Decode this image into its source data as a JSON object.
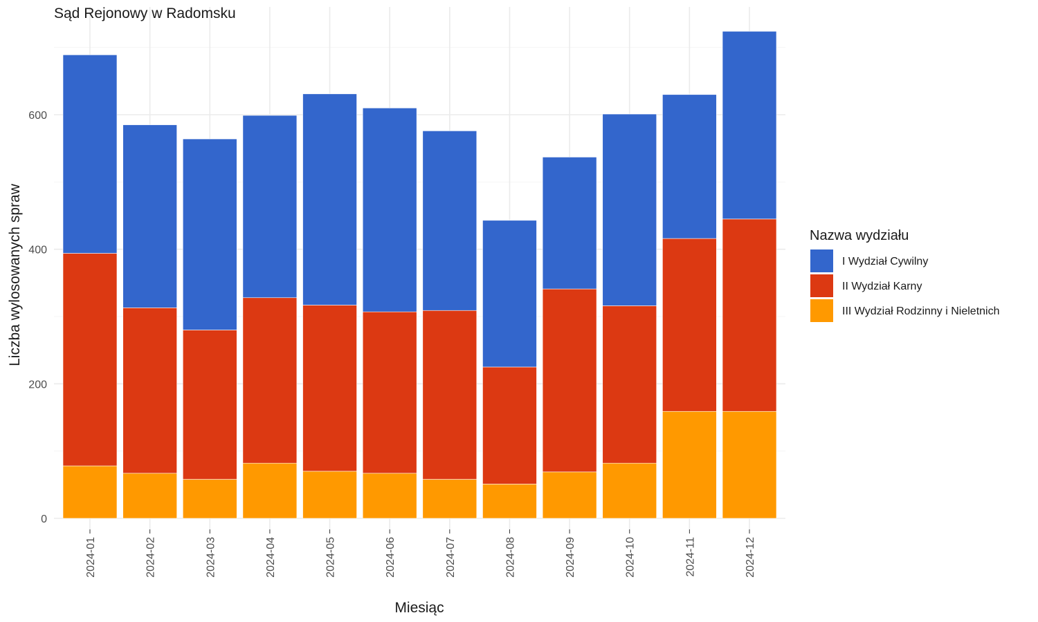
{
  "chart_data": {
    "type": "bar",
    "stacked": true,
    "title": "Sąd Rejonowy w Radomsku",
    "xlabel": "Miesiąc",
    "ylabel": "Liczba wylosowanych spraw",
    "ylim": [
      0,
      760
    ],
    "y_ticks": [
      0,
      200,
      400,
      600
    ],
    "grid": true,
    "legend_position": "right",
    "legend_title": "Nazwa wydziału",
    "categories": [
      "2024-01",
      "2024-02",
      "2024-03",
      "2024-04",
      "2024-05",
      "2024-06",
      "2024-07",
      "2024-08",
      "2024-09",
      "2024-10",
      "2024-11",
      "2024-12"
    ],
    "series": [
      {
        "name": "III Wydział Rodzinny i Nieletnich",
        "color": "#ff9900",
        "values": [
          78,
          67,
          58,
          82,
          70,
          67,
          58,
          51,
          69,
          82,
          159,
          159
        ]
      },
      {
        "name": "II Wydział Karny",
        "color": "#dc3912",
        "values": [
          316,
          246,
          222,
          246,
          247,
          240,
          251,
          174,
          272,
          234,
          257,
          286
        ]
      },
      {
        "name": "I Wydział Cywilny",
        "color": "#3366cc",
        "values": [
          295,
          272,
          284,
          271,
          314,
          303,
          267,
          218,
          196,
          285,
          214,
          279
        ]
      }
    ]
  }
}
